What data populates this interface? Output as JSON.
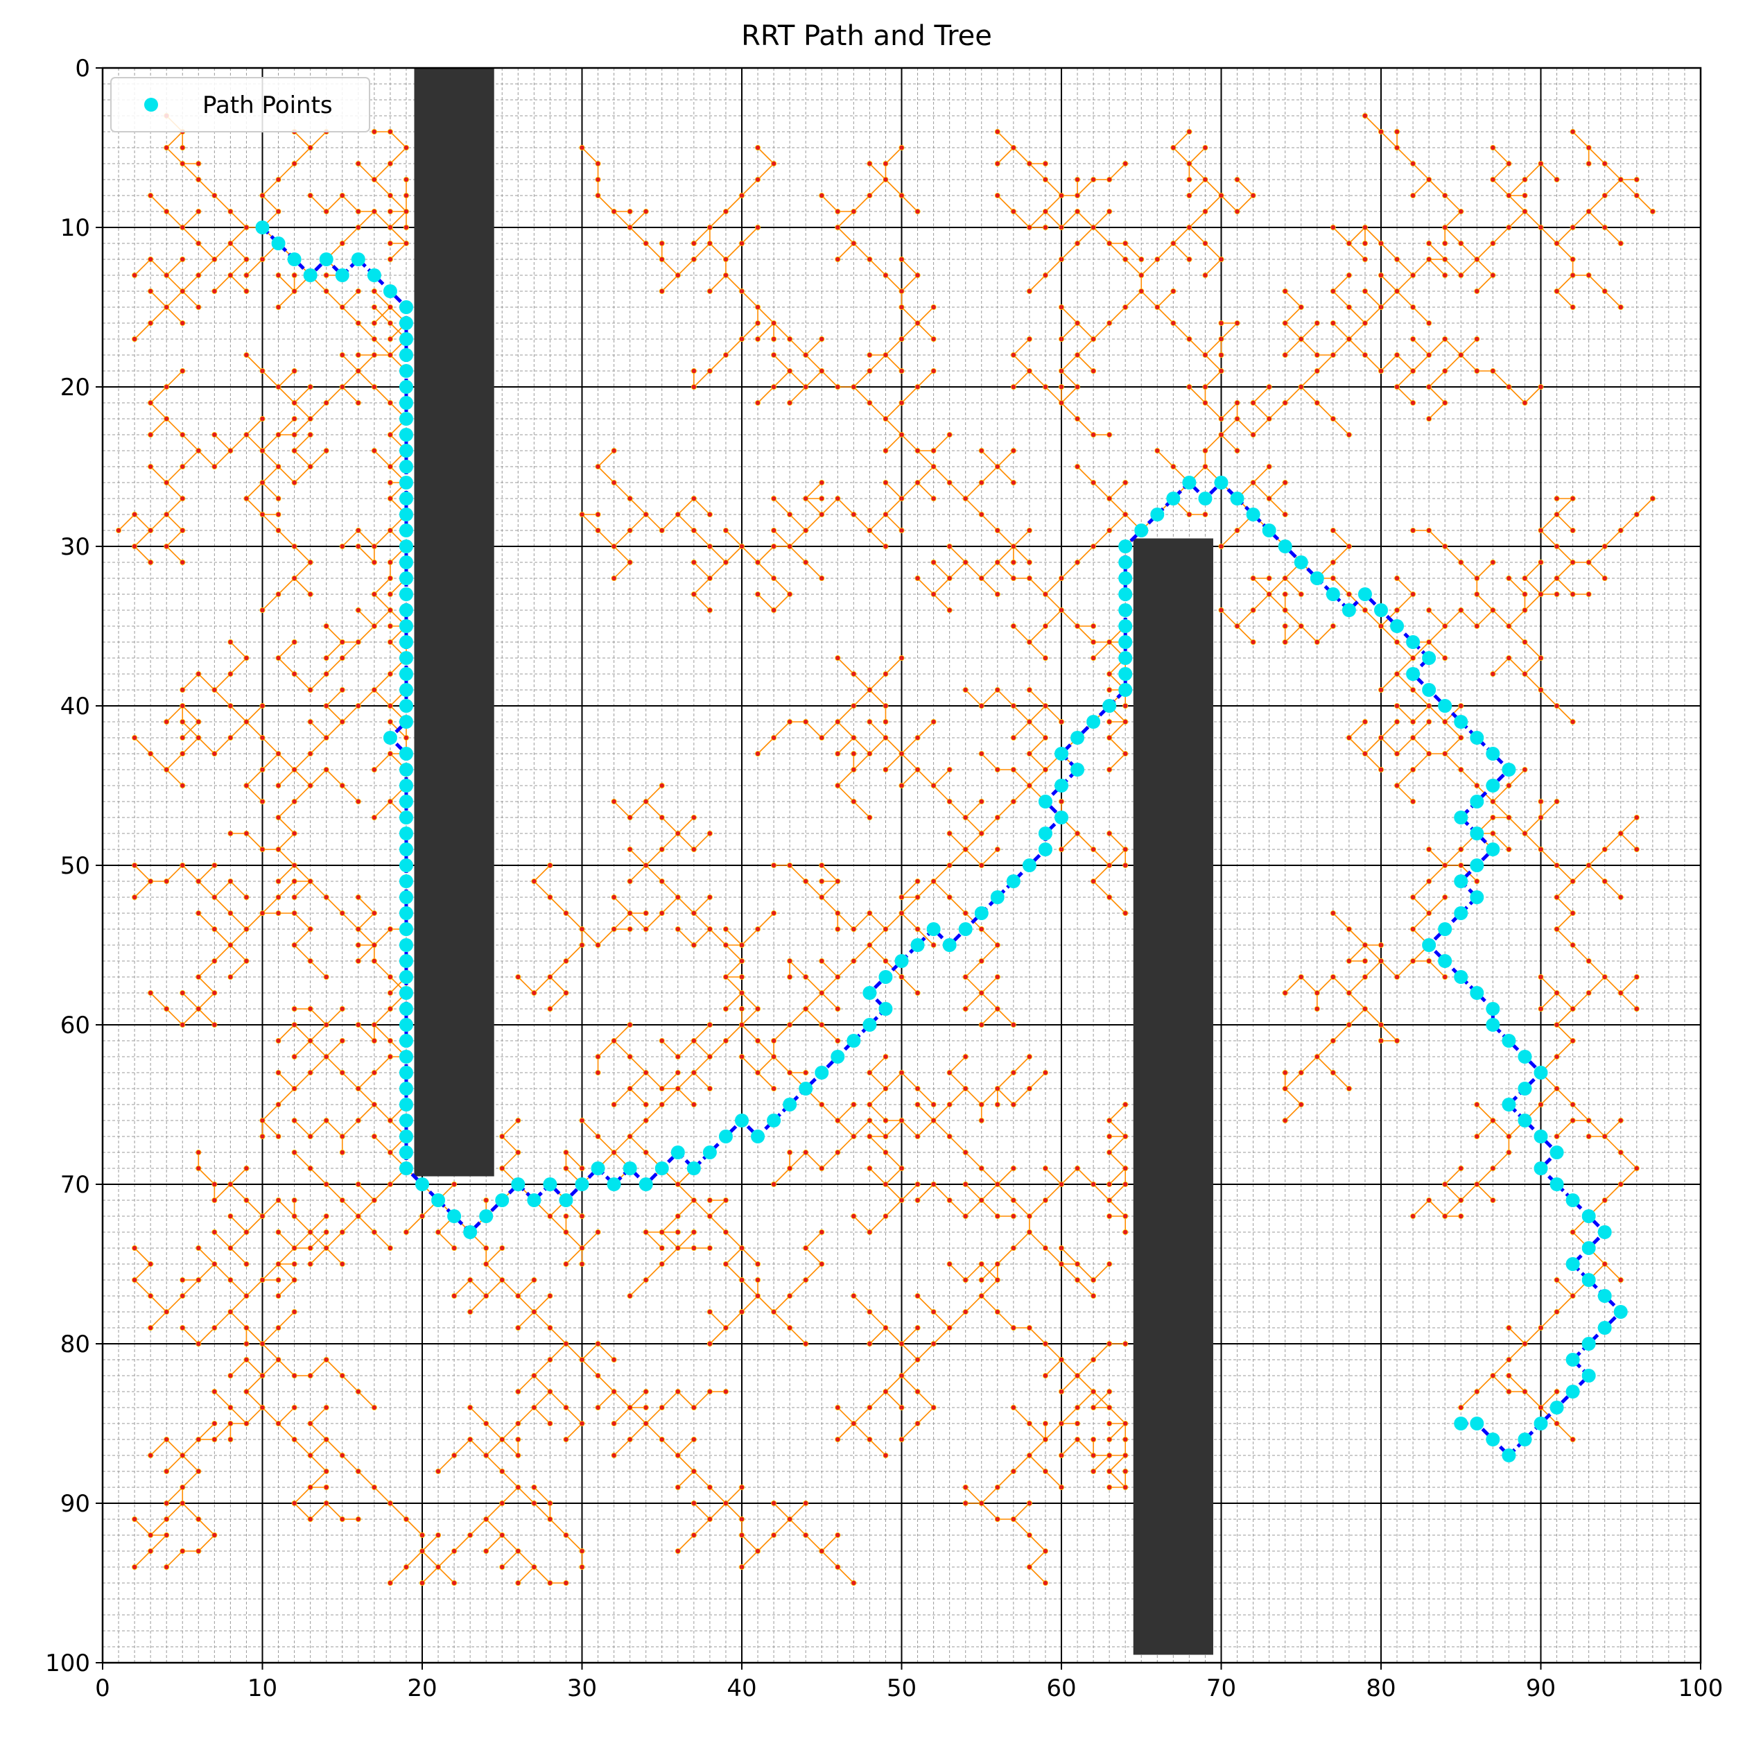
{
  "chart_data": {
    "type": "scatter",
    "title": "RRT Path and Tree",
    "xlabel": "",
    "ylabel": "",
    "xlim": [
      0,
      100
    ],
    "ylim": [
      100,
      0
    ],
    "y_inverted": true,
    "x_ticks": [
      0,
      10,
      20,
      30,
      40,
      50,
      60,
      70,
      80,
      90,
      100
    ],
    "y_ticks": [
      0,
      10,
      20,
      30,
      40,
      50,
      60,
      70,
      80,
      90,
      100
    ],
    "grid": true,
    "minor_grid": true,
    "legend": {
      "position": "top-left",
      "entries": [
        "Path Points"
      ]
    },
    "colors": {
      "path_points": "#00e5ee",
      "path_line": "#0000ff",
      "tree_edges": "#ff8c00",
      "tree_nodes": "#e31a1c",
      "obstacles": "#333333"
    },
    "obstacles": [
      {
        "x": [
          19.5,
          24.5
        ],
        "y": [
          0,
          69.5
        ]
      },
      {
        "x": [
          64.5,
          69.5
        ],
        "y": [
          29.5,
          99.5
        ]
      }
    ],
    "series": [
      {
        "name": "Path Points",
        "points": [
          [
            10,
            10
          ],
          [
            11,
            11
          ],
          [
            12,
            12
          ],
          [
            13,
            13
          ],
          [
            14,
            12
          ],
          [
            15,
            13
          ],
          [
            16,
            12
          ],
          [
            17,
            13
          ],
          [
            18,
            14
          ],
          [
            19,
            15
          ],
          [
            19,
            16
          ],
          [
            19,
            17
          ],
          [
            19,
            18
          ],
          [
            19,
            19
          ],
          [
            19,
            20
          ],
          [
            19,
            21
          ],
          [
            19,
            22
          ],
          [
            19,
            23
          ],
          [
            19,
            24
          ],
          [
            19,
            25
          ],
          [
            19,
            26
          ],
          [
            19,
            27
          ],
          [
            19,
            28
          ],
          [
            19,
            29
          ],
          [
            19,
            30
          ],
          [
            19,
            31
          ],
          [
            19,
            32
          ],
          [
            19,
            33
          ],
          [
            19,
            34
          ],
          [
            19,
            35
          ],
          [
            19,
            36
          ],
          [
            19,
            37
          ],
          [
            19,
            38
          ],
          [
            19,
            39
          ],
          [
            19,
            40
          ],
          [
            19,
            41
          ],
          [
            18,
            42
          ],
          [
            19,
            43
          ],
          [
            19,
            44
          ],
          [
            19,
            45
          ],
          [
            19,
            46
          ],
          [
            19,
            47
          ],
          [
            19,
            48
          ],
          [
            19,
            49
          ],
          [
            19,
            50
          ],
          [
            19,
            51
          ],
          [
            19,
            52
          ],
          [
            19,
            53
          ],
          [
            19,
            54
          ],
          [
            19,
            55
          ],
          [
            19,
            56
          ],
          [
            19,
            57
          ],
          [
            19,
            58
          ],
          [
            19,
            59
          ],
          [
            19,
            60
          ],
          [
            19,
            61
          ],
          [
            19,
            62
          ],
          [
            19,
            63
          ],
          [
            19,
            64
          ],
          [
            19,
            65
          ],
          [
            19,
            66
          ],
          [
            19,
            67
          ],
          [
            19,
            68
          ],
          [
            19,
            69
          ],
          [
            20,
            70
          ],
          [
            21,
            71
          ],
          [
            22,
            72
          ],
          [
            23,
            73
          ],
          [
            24,
            72
          ],
          [
            25,
            71
          ],
          [
            26,
            70
          ],
          [
            27,
            71
          ],
          [
            28,
            70
          ],
          [
            29,
            71
          ],
          [
            30,
            70
          ],
          [
            31,
            69
          ],
          [
            32,
            70
          ],
          [
            33,
            69
          ],
          [
            34,
            70
          ],
          [
            35,
            69
          ],
          [
            36,
            68
          ],
          [
            37,
            69
          ],
          [
            38,
            68
          ],
          [
            39,
            67
          ],
          [
            40,
            66
          ],
          [
            41,
            67
          ],
          [
            42,
            66
          ],
          [
            43,
            65
          ],
          [
            44,
            64
          ],
          [
            45,
            63
          ],
          [
            46,
            62
          ],
          [
            47,
            61
          ],
          [
            48,
            60
          ],
          [
            49,
            59
          ],
          [
            48,
            58
          ],
          [
            49,
            57
          ],
          [
            50,
            56
          ],
          [
            51,
            55
          ],
          [
            52,
            54
          ],
          [
            53,
            55
          ],
          [
            54,
            54
          ],
          [
            55,
            53
          ],
          [
            56,
            52
          ],
          [
            57,
            51
          ],
          [
            58,
            50
          ],
          [
            59,
            49
          ],
          [
            59,
            48
          ],
          [
            60,
            47
          ],
          [
            59,
            46
          ],
          [
            60,
            45
          ],
          [
            61,
            44
          ],
          [
            60,
            43
          ],
          [
            61,
            42
          ],
          [
            62,
            41
          ],
          [
            63,
            40
          ],
          [
            64,
            39
          ],
          [
            64,
            38
          ],
          [
            64,
            37
          ],
          [
            64,
            36
          ],
          [
            64,
            35
          ],
          [
            64,
            34
          ],
          [
            64,
            33
          ],
          [
            64,
            32
          ],
          [
            64,
            31
          ],
          [
            64,
            30
          ],
          [
            65,
            29
          ],
          [
            66,
            28
          ],
          [
            67,
            27
          ],
          [
            68,
            26
          ],
          [
            69,
            27
          ],
          [
            70,
            26
          ],
          [
            71,
            27
          ],
          [
            72,
            28
          ],
          [
            73,
            29
          ],
          [
            74,
            30
          ],
          [
            75,
            31
          ],
          [
            76,
            32
          ],
          [
            77,
            33
          ],
          [
            78,
            34
          ],
          [
            79,
            33
          ],
          [
            80,
            34
          ],
          [
            81,
            35
          ],
          [
            82,
            36
          ],
          [
            83,
            37
          ],
          [
            82,
            38
          ],
          [
            83,
            39
          ],
          [
            84,
            40
          ],
          [
            85,
            41
          ],
          [
            86,
            42
          ],
          [
            87,
            43
          ],
          [
            88,
            44
          ],
          [
            87,
            45
          ],
          [
            86,
            46
          ],
          [
            85,
            47
          ],
          [
            86,
            48
          ],
          [
            87,
            49
          ],
          [
            86,
            50
          ],
          [
            85,
            51
          ],
          [
            86,
            52
          ],
          [
            85,
            53
          ],
          [
            84,
            54
          ],
          [
            83,
            55
          ],
          [
            84,
            56
          ],
          [
            85,
            57
          ],
          [
            86,
            58
          ],
          [
            87,
            59
          ],
          [
            87,
            60
          ],
          [
            88,
            61
          ],
          [
            89,
            62
          ],
          [
            90,
            63
          ],
          [
            89,
            64
          ],
          [
            88,
            65
          ],
          [
            89,
            66
          ],
          [
            90,
            67
          ],
          [
            91,
            68
          ],
          [
            90,
            69
          ],
          [
            91,
            70
          ],
          [
            92,
            71
          ],
          [
            93,
            72
          ],
          [
            94,
            73
          ],
          [
            93,
            74
          ],
          [
            92,
            75
          ],
          [
            93,
            76
          ],
          [
            94,
            77
          ],
          [
            95,
            78
          ],
          [
            94,
            79
          ],
          [
            93,
            80
          ],
          [
            92,
            81
          ],
          [
            93,
            82
          ],
          [
            92,
            83
          ],
          [
            91,
            84
          ],
          [
            90,
            85
          ],
          [
            89,
            86
          ],
          [
            88,
            87
          ],
          [
            87,
            86
          ],
          [
            86,
            85
          ],
          [
            85,
            85
          ]
        ]
      }
    ]
  }
}
